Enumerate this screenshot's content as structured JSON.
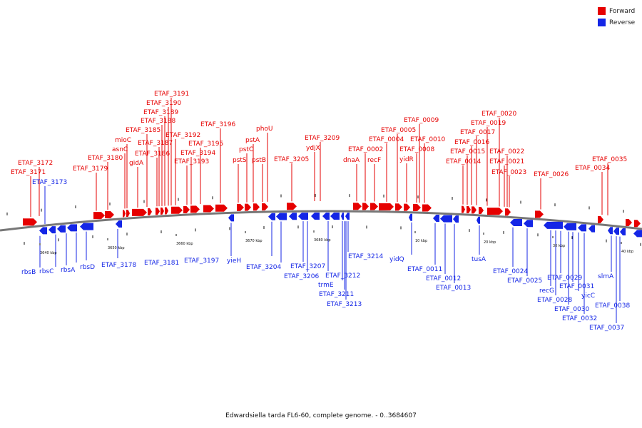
{
  "colors": {
    "forward": "#e60000",
    "reverse": "#1426e6",
    "backbone": "#777777"
  },
  "legend": {
    "forward_label": "Forward",
    "reverse_label": "Reverse"
  },
  "caption": "Edwardsiella tarda FL6-60, complete genome. - 0..3684607",
  "scale_labels": [
    "3640 kbp",
    "3650 kbp",
    "3660 kbp",
    "3670 kbp",
    "3680 kbp",
    "10 kbp",
    "20 kbp",
    "30 kbp",
    "40 kbp"
  ],
  "forward_labels": [
    "ETAF_3171",
    "ETAF_3172",
    "ETAF_3179",
    "ETAF_3180",
    "asnC",
    "mioC",
    "gidA",
    "ETAF_3185",
    "ETAF_3186",
    "ETAF_3187",
    "ETAF_3188",
    "ETAF_3189",
    "ETAF_3190",
    "ETAF_3191",
    "ETAF_3192",
    "ETAF_3193",
    "ETAF_3194",
    "ETAF_3195",
    "ETAF_3196",
    "pstS",
    "pstC",
    "pstA",
    "pstB",
    "phoU",
    "ETAF_3205",
    "ydjX",
    "ETAF_3209",
    "dnaA",
    "ETAF_0002",
    "recF",
    "ETAF_0004",
    "ETAF_0005",
    "yidR",
    "ETAF_0008",
    "ETAF_0009",
    "ETAF_0010",
    "ETAF_0014",
    "ETAF_0015",
    "ETAF_0016",
    "ETAF_0017",
    "ETAF_0019",
    "ETAF_0020",
    "ETAF_0021",
    "ETAF_0022",
    "ETAF_0023",
    "ETAF_0026",
    "ETAF_0034",
    "ETAF_0035"
  ],
  "reverse_labels": [
    "ETAF_3173",
    "rbsB",
    "rbsC",
    "rbsA",
    "rbsD",
    "ETAF_3178",
    "ETAF_3181",
    "ETAF_3197",
    "yieH",
    "ETAF_3204",
    "ETAF_3207",
    "ETAF_3206",
    "ETAF_3212",
    "trmE",
    "ETAF_3211",
    "ETAF_3213",
    "ETAF_3214",
    "yidQ",
    "ETAF_0011",
    "ETAF_0012",
    "ETAF_0013",
    "tusA",
    "ETAF_0024",
    "ETAF_0025",
    "recG",
    "ETAF_0028",
    "ETAF_0029",
    "ETAF_0030",
    "ETAF_0031",
    "yicC",
    "ETAF_0032",
    "slmA",
    "ETAF_0037",
    "ETAF_0038"
  ]
}
